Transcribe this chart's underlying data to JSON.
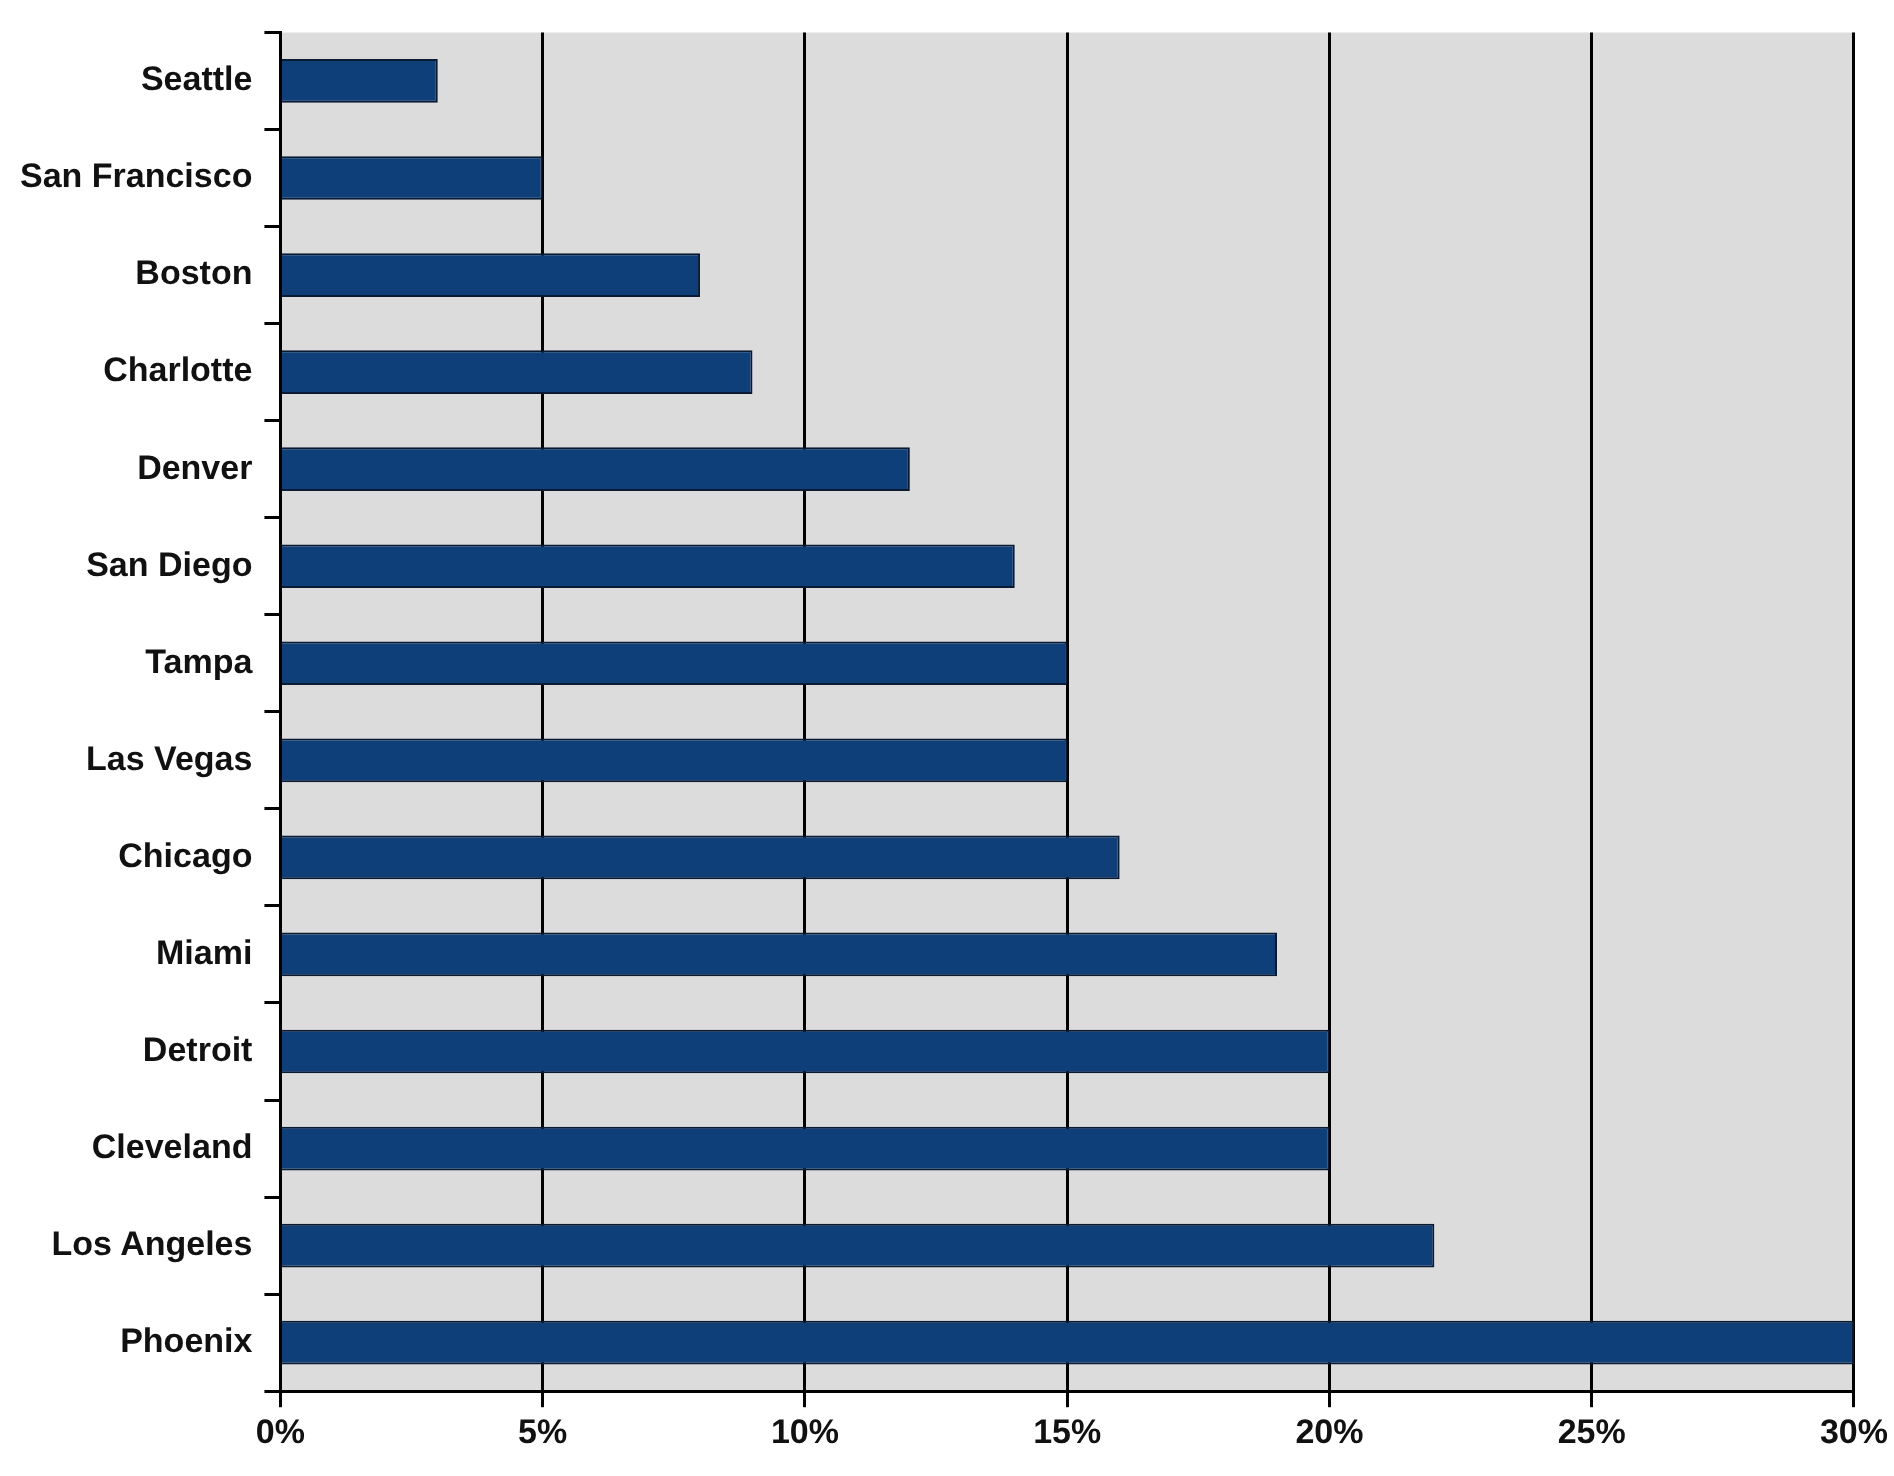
{
  "chart_data": {
    "type": "bar",
    "orientation": "horizontal",
    "categories": [
      "Seattle",
      "San Francisco",
      "Boston",
      "Charlotte",
      "Denver",
      "San Diego",
      "Tampa",
      "Las Vegas",
      "Chicago",
      "Miami",
      "Detroit",
      "Cleveland",
      "Los Angeles",
      "Phoenix"
    ],
    "values": [
      3,
      5,
      8,
      9,
      12,
      14,
      15,
      15,
      16,
      19,
      20,
      20,
      22,
      30
    ],
    "color": "#0e3f78",
    "xlim": [
      0,
      30
    ],
    "xticks": [
      {
        "value": 0,
        "label": "0%"
      },
      {
        "value": 5,
        "label": "5%"
      },
      {
        "value": 10,
        "label": "10%"
      },
      {
        "value": 15,
        "label": "15%"
      },
      {
        "value": 20,
        "label": "20%"
      },
      {
        "value": 25,
        "label": "25%"
      },
      {
        "value": 30,
        "label": "30%"
      }
    ],
    "grid": "x",
    "legend": false
  }
}
